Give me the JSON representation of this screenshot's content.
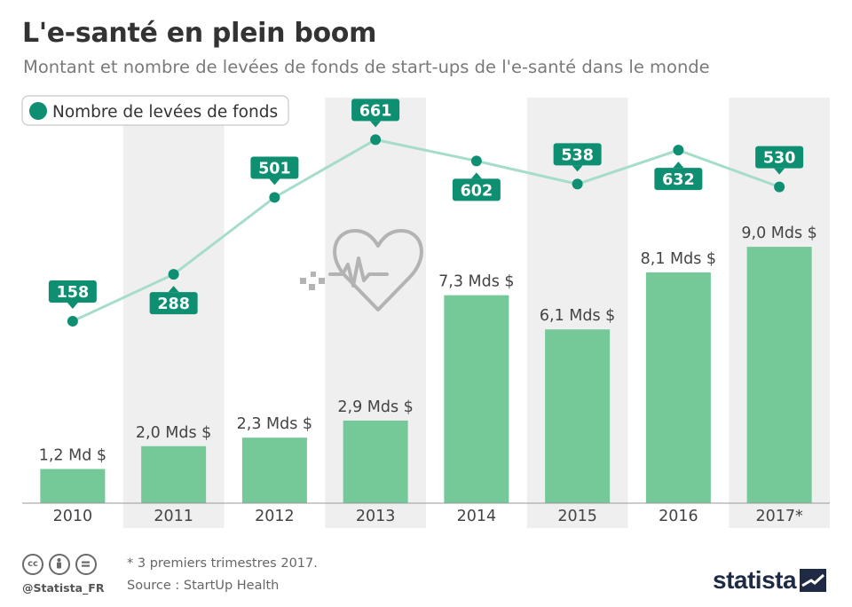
{
  "header": {
    "title": "L'e-santé en plein boom",
    "subtitle": "Montant et nombre de levées de fonds de start-ups de l'e-santé dans le monde"
  },
  "chart_data": {
    "type": "bar",
    "categories": [
      "2010",
      "2011",
      "2012",
      "2013",
      "2014",
      "2015",
      "2016",
      "2017*"
    ],
    "series": [
      {
        "values": [
          1.2,
          2.0,
          2.3,
          2.9,
          7.3,
          6.1,
          8.1,
          9.0
        ],
        "labels": [
          "1,2 Md $",
          "2,0 Mds $",
          "2,3 Mds $",
          "2,9 Mds $",
          "7,3 Mds $",
          "6,1 Mds $",
          "8,1 Mds $",
          "9,0 Mds $"
        ],
        "type": "bar",
        "color": "#75c898"
      },
      {
        "name": "Nombre de levées de fonds",
        "values": [
          158,
          288,
          501,
          661,
          602,
          538,
          632,
          530
        ],
        "label_side": [
          "above",
          "below",
          "above",
          "above",
          "below",
          "above",
          "below",
          "above"
        ],
        "type": "line",
        "color": "#0e8f72",
        "line_color": "#a6ddc9"
      }
    ],
    "legend": "top-left",
    "grid": false,
    "alternating_column_shading": true
  },
  "colors": {
    "bar": "#75c898",
    "marker": "#0e8f72",
    "line": "#a6ddc9",
    "shade": "#efefef",
    "title": "#333333",
    "subtitle": "#7a7a7a",
    "heart_icon": "#b3b3b3"
  },
  "decoration": {
    "icon": "heartbeat-icon"
  },
  "footer": {
    "handle": "@Statista_FR",
    "note": "* 3 premiers trimestres 2017.",
    "source": "Source : StartUp Health",
    "logo": "statista",
    "license_icons": [
      "cc-icon",
      "by-icon",
      "nd-icon"
    ]
  }
}
